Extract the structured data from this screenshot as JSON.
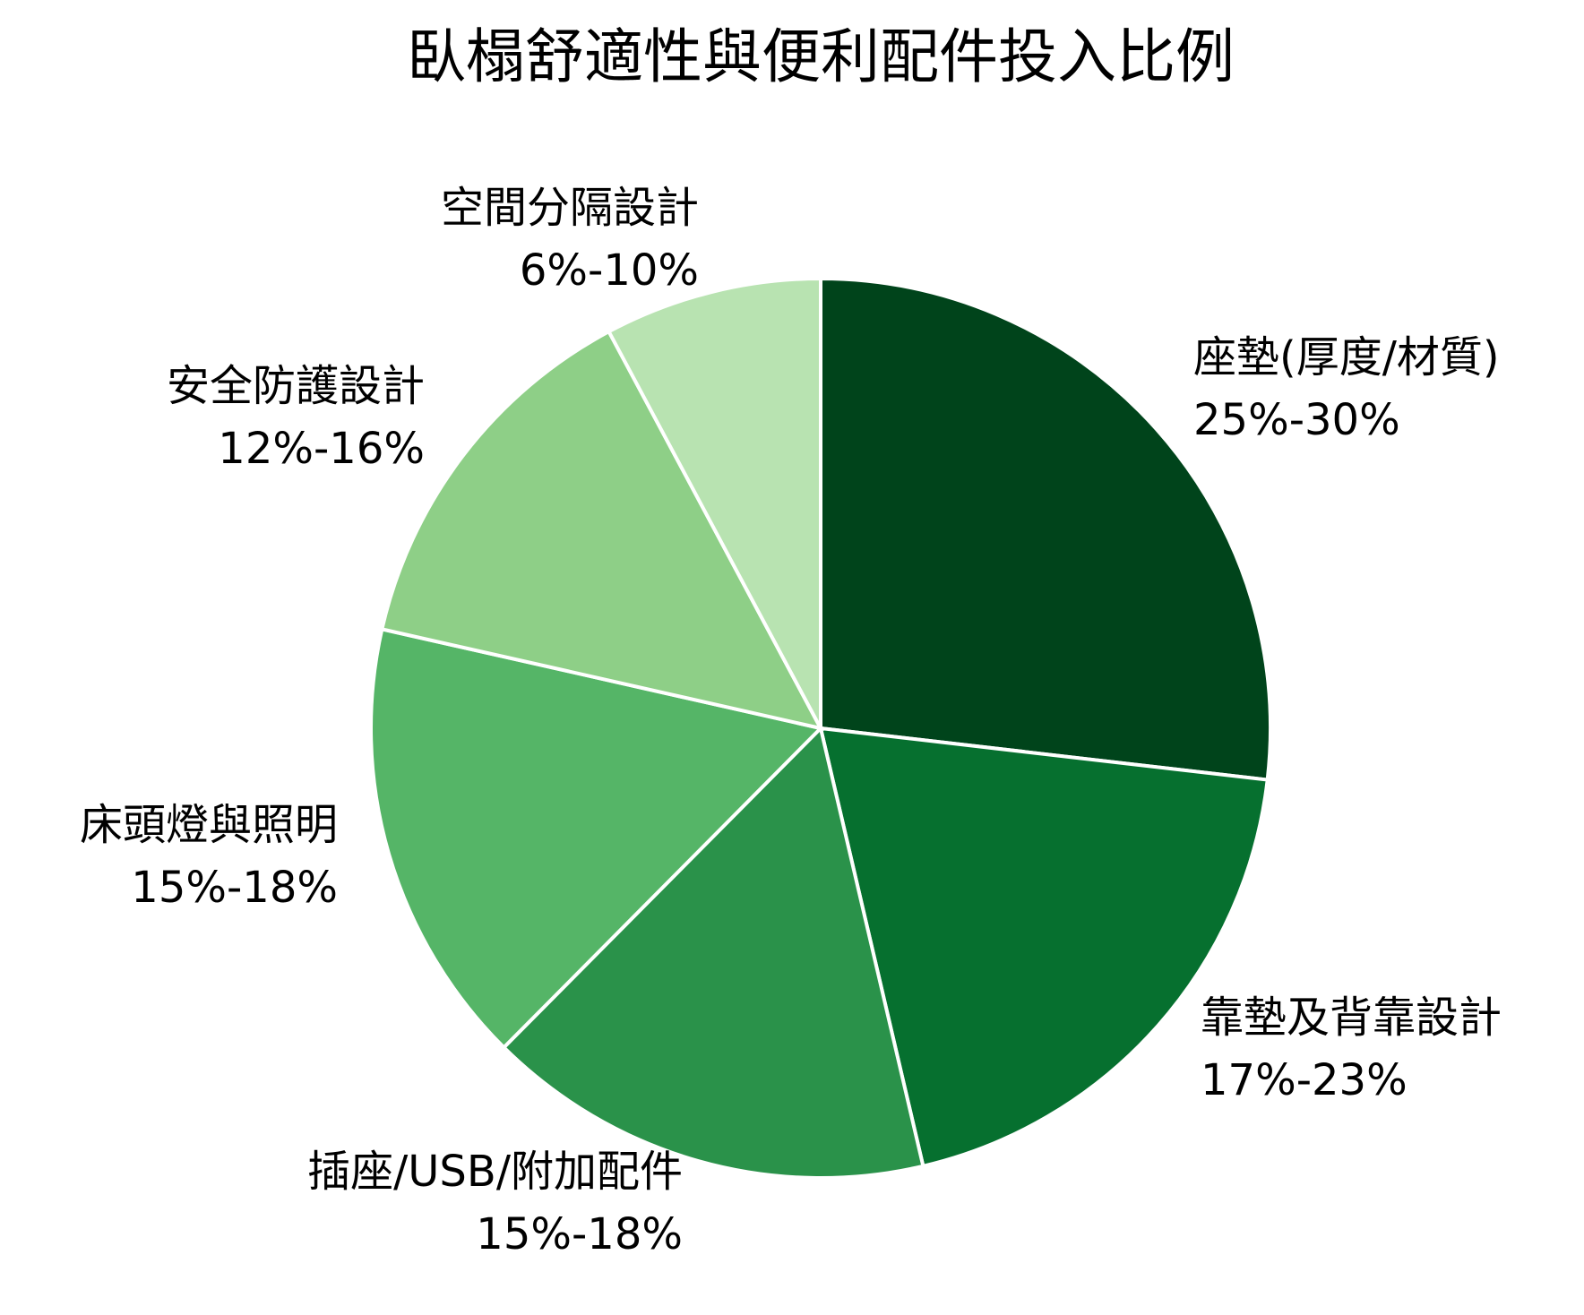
{
  "chart_data": {
    "type": "pie",
    "title": "臥榻舒適性與便利配件投入比例",
    "categories": [
      "座墊(厚度/材質)",
      "靠墊及背靠設計",
      "插座/USB/附加配件",
      "床頭燈與照明",
      "安全防護設計",
      "空間分隔設計"
    ],
    "values": [
      27.5,
      20,
      16.5,
      16.5,
      14,
      8
    ],
    "value_labels": [
      "25%-30%",
      "17%-23%",
      "15%-18%",
      "15%-18%",
      "12%-16%",
      "6%-10%"
    ],
    "colors": [
      "#00441b",
      "#06702f",
      "#2a924a",
      "#55b567",
      "#8ecf87",
      "#b8e3b1"
    ]
  }
}
